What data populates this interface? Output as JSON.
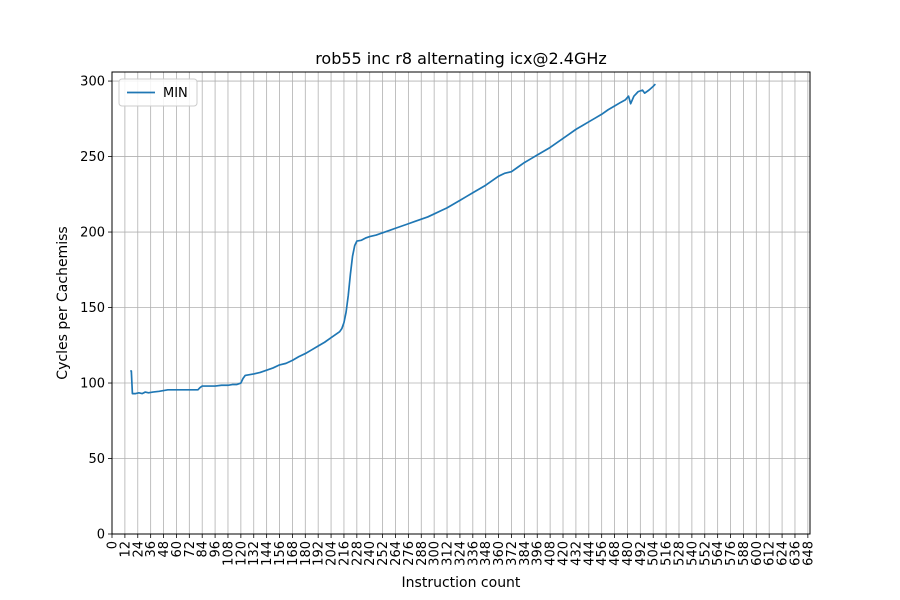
{
  "chart_data": {
    "type": "line",
    "title": "rob55 inc r8 alternating icx@2.4GHz",
    "xlabel": "Instruction count",
    "ylabel": "Cycles per Cachemiss",
    "xlim": [
      0,
      650
    ],
    "ylim": [
      0,
      306
    ],
    "x_ticks": [
      0,
      12,
      24,
      36,
      48,
      60,
      72,
      84,
      96,
      108,
      120,
      132,
      144,
      156,
      168,
      180,
      192,
      204,
      216,
      228,
      240,
      252,
      264,
      276,
      288,
      300,
      312,
      324,
      336,
      348,
      360,
      372,
      384,
      396,
      408,
      420,
      432,
      444,
      456,
      468,
      480,
      492,
      504,
      516,
      528,
      540,
      552,
      564,
      576,
      588,
      600,
      612,
      624,
      636,
      648
    ],
    "y_ticks": [
      0,
      50,
      100,
      150,
      200,
      250,
      300
    ],
    "grid": true,
    "legend": {
      "position": "top-left"
    },
    "line_color": "#1f77b4",
    "series": [
      {
        "name": "MIN",
        "points": [
          [
            17,
            108
          ],
          [
            18,
            108
          ],
          [
            19,
            93
          ],
          [
            22,
            93
          ],
          [
            25,
            93.5
          ],
          [
            28,
            93
          ],
          [
            31,
            94
          ],
          [
            34,
            93.5
          ],
          [
            38,
            94
          ],
          [
            44,
            94.5
          ],
          [
            48,
            95
          ],
          [
            52,
            95.5
          ],
          [
            58,
            95.5
          ],
          [
            64,
            95.5
          ],
          [
            70,
            95.5
          ],
          [
            76,
            95.5
          ],
          [
            80,
            95.5
          ],
          [
            82,
            97
          ],
          [
            84,
            98
          ],
          [
            90,
            98
          ],
          [
            96,
            98
          ],
          [
            102,
            98.5
          ],
          [
            108,
            98.5
          ],
          [
            112,
            99
          ],
          [
            116,
            99
          ],
          [
            120,
            100
          ],
          [
            122,
            103
          ],
          [
            124,
            105
          ],
          [
            128,
            105.5
          ],
          [
            132,
            106
          ],
          [
            138,
            107
          ],
          [
            144,
            108.5
          ],
          [
            150,
            110
          ],
          [
            156,
            112
          ],
          [
            162,
            113
          ],
          [
            168,
            115
          ],
          [
            174,
            117.5
          ],
          [
            180,
            119.5
          ],
          [
            186,
            122
          ],
          [
            192,
            124.5
          ],
          [
            198,
            127
          ],
          [
            204,
            130
          ],
          [
            208,
            132
          ],
          [
            212,
            134
          ],
          [
            214,
            136
          ],
          [
            216,
            140
          ],
          [
            218,
            147
          ],
          [
            220,
            158
          ],
          [
            222,
            172
          ],
          [
            224,
            184
          ],
          [
            226,
            191
          ],
          [
            228,
            194
          ],
          [
            232,
            194.5
          ],
          [
            236,
            196
          ],
          [
            240,
            197
          ],
          [
            246,
            198
          ],
          [
            252,
            199.5
          ],
          [
            258,
            201
          ],
          [
            264,
            202.5
          ],
          [
            270,
            204
          ],
          [
            276,
            205.5
          ],
          [
            282,
            207
          ],
          [
            288,
            208.5
          ],
          [
            294,
            210
          ],
          [
            300,
            212
          ],
          [
            306,
            214
          ],
          [
            312,
            216
          ],
          [
            318,
            218.5
          ],
          [
            324,
            221
          ],
          [
            330,
            223.5
          ],
          [
            336,
            226
          ],
          [
            342,
            228.5
          ],
          [
            348,
            231
          ],
          [
            354,
            234
          ],
          [
            360,
            237
          ],
          [
            366,
            239
          ],
          [
            372,
            240
          ],
          [
            378,
            243
          ],
          [
            384,
            246
          ],
          [
            390,
            248.5
          ],
          [
            396,
            251
          ],
          [
            402,
            253.5
          ],
          [
            408,
            256
          ],
          [
            414,
            259
          ],
          [
            420,
            262
          ],
          [
            426,
            265
          ],
          [
            432,
            268
          ],
          [
            438,
            270.5
          ],
          [
            444,
            273
          ],
          [
            450,
            275.5
          ],
          [
            456,
            278
          ],
          [
            462,
            281
          ],
          [
            468,
            283.5
          ],
          [
            474,
            286
          ],
          [
            478,
            287.5
          ],
          [
            481,
            290
          ],
          [
            483,
            285
          ],
          [
            486,
            290
          ],
          [
            490,
            293
          ],
          [
            494,
            294
          ],
          [
            496,
            292
          ],
          [
            500,
            294
          ],
          [
            504,
            296.5
          ],
          [
            506,
            298
          ]
        ]
      }
    ]
  }
}
